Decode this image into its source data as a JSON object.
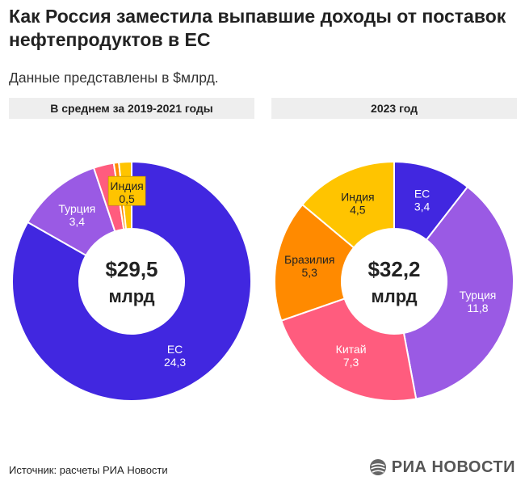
{
  "header": {
    "title": "Как Россия заместила выпавшие доходы от поставок нефтепродуктов в ЕС",
    "subtitle": "Данные представлены в $млрд."
  },
  "footer": {
    "source": "Источник: расчеты РИА Новости",
    "logo": "РИА НОВОСТИ"
  },
  "chart_data": [
    {
      "type": "pie",
      "title": "В среднем за 2019-2021 годы",
      "center_value": "$29,5",
      "center_unit": "млрд",
      "total": 29.5,
      "slices": [
        {
          "label": "ЕС",
          "value": 24.3,
          "value_label": "24,3",
          "color": "#4127e0"
        },
        {
          "label": "Турция",
          "value": 3.4,
          "value_label": "3,4",
          "color": "#9a5ae4"
        },
        {
          "label": "",
          "value": 0.8,
          "value_label": "",
          "color": "#ff5c7e"
        },
        {
          "label": "",
          "value": 0.2,
          "value_label": "",
          "color": "#ff8a00"
        },
        {
          "label": "Индия",
          "value": 0.5,
          "value_label": "0,5",
          "color": "#ffc400"
        }
      ]
    },
    {
      "type": "pie",
      "title": "2023 год",
      "center_value": "$32,2",
      "center_unit": "млрд",
      "total": 32.2,
      "slices": [
        {
          "label": "ЕС",
          "value": 3.4,
          "value_label": "3,4",
          "color": "#4127e0"
        },
        {
          "label": "Турция",
          "value": 11.8,
          "value_label": "11,8",
          "color": "#9a5ae4"
        },
        {
          "label": "Китай",
          "value": 7.3,
          "value_label": "7,3",
          "color": "#ff5c7e"
        },
        {
          "label": "Бразилия",
          "value": 5.3,
          "value_label": "5,3",
          "color": "#ff8a00"
        },
        {
          "label": "Индия",
          "value": 4.5,
          "value_label": "4,5",
          "color": "#ffc400"
        }
      ]
    }
  ]
}
